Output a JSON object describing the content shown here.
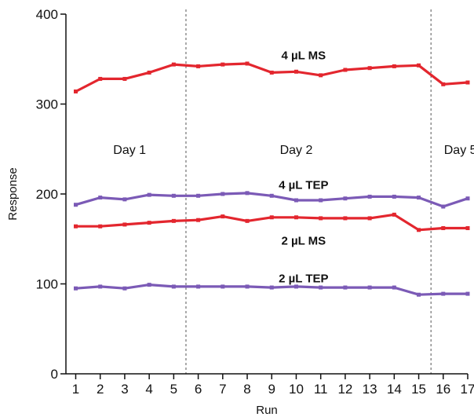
{
  "chart_data": {
    "type": "line",
    "title": "",
    "xlabel": "Run",
    "ylabel": "Response",
    "xlim": [
      0.6,
      17
    ],
    "ylim": [
      0,
      400
    ],
    "x": [
      1,
      2,
      3,
      4,
      5,
      6,
      7,
      8,
      9,
      10,
      11,
      12,
      13,
      14,
      15,
      16,
      17
    ],
    "x_ticks": [
      1,
      2,
      3,
      4,
      5,
      6,
      7,
      8,
      9,
      10,
      11,
      12,
      13,
      14,
      15,
      16,
      17
    ],
    "y_ticks": [
      0,
      100,
      200,
      300,
      400
    ],
    "grid": false,
    "legend": "none",
    "series": [
      {
        "name": "4 µL MS",
        "color": "#e3262e",
        "values": [
          314,
          328,
          328,
          335,
          344,
          342,
          344,
          345,
          335,
          336,
          332,
          338,
          340,
          342,
          343,
          322,
          324
        ]
      },
      {
        "name": "4 µL TEP",
        "color": "#7b5ab6",
        "values": [
          188,
          196,
          194,
          199,
          198,
          198,
          200,
          201,
          198,
          193,
          193,
          195,
          197,
          197,
          196,
          186,
          195
        ]
      },
      {
        "name": "2 µL MS",
        "color": "#e3262e",
        "values": [
          164,
          164,
          166,
          168,
          170,
          171,
          175,
          170,
          174,
          174,
          173,
          173,
          173,
          177,
          160,
          162,
          162
        ]
      },
      {
        "name": "2 µL TEP",
        "color": "#7b5ab6",
        "values": [
          95,
          97,
          95,
          99,
          97,
          97,
          97,
          97,
          96,
          97,
          96,
          96,
          96,
          96,
          88,
          89,
          89
        ]
      }
    ],
    "annotations": {
      "day_dividers": [
        5.5,
        15.5
      ],
      "day_labels": [
        {
          "text": "Day 1",
          "x": 3.2,
          "y": 250
        },
        {
          "text": "Day 2",
          "x": 10.0,
          "y": 250
        },
        {
          "text": "Day 5",
          "x": 16.7,
          "y": 250
        }
      ],
      "series_labels": [
        {
          "text": "4 µL MS",
          "x": 10.3,
          "y": 354
        },
        {
          "text": "4 µL TEP",
          "x": 10.3,
          "y": 210
        },
        {
          "text": "2 µL MS",
          "x": 10.3,
          "y": 148
        },
        {
          "text": "2 µL TEP",
          "x": 10.3,
          "y": 106
        }
      ]
    }
  }
}
